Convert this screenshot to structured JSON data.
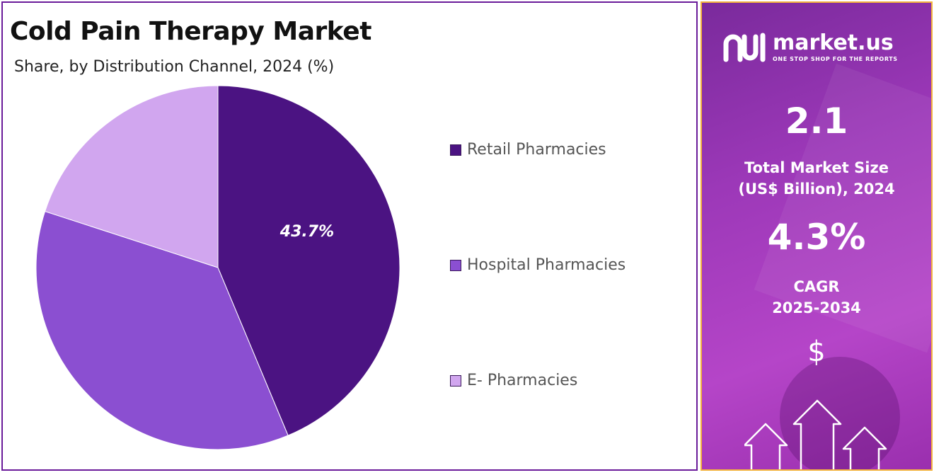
{
  "chart_data": {
    "type": "pie",
    "title": "Cold Pain Therapy Market",
    "subtitle": "Share, by Distribution Channel, 2024 (%)",
    "slices": [
      {
        "name": "Retail Pharmacies",
        "value": 43.7,
        "label": "43.7%",
        "color": "#4b1382"
      },
      {
        "name": "Hospital Pharmacies",
        "value": 36.3,
        "label": "",
        "color": "#8b4fd1"
      },
      {
        "name": "E- Pharmacies",
        "value": 20.0,
        "label": "",
        "color": "#d1a6ef"
      }
    ],
    "legend_position": "right"
  },
  "brand": {
    "name": "market.us",
    "tagline": "ONE STOP SHOP FOR THE REPORTS"
  },
  "stats": {
    "market_size_value": "2.1",
    "market_size_label_line1": "Total Market Size",
    "market_size_label_line2": "(US$ Billion), 2024",
    "cagr_value": "4.3%",
    "cagr_label_line1": "CAGR",
    "cagr_label_line2": "2025-2034",
    "currency_symbol": "$"
  },
  "icons": {
    "logo": "market-us-logo-icon",
    "growth": "growth-arrows-icon"
  }
}
